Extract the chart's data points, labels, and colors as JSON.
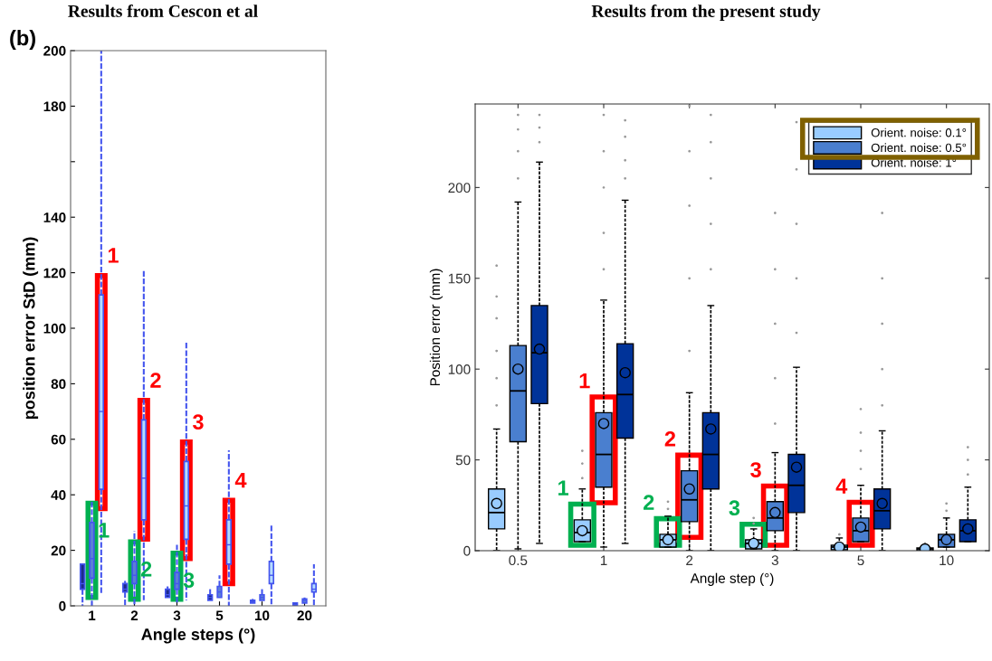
{
  "chart_data": [
    {
      "type": "box",
      "title": "Results from Cescon et al",
      "xlabel": "Angle steps (°)",
      "ylabel": "position error StD (mm)",
      "categories": [
        "1",
        "2",
        "3",
        "5",
        "10",
        "20"
      ],
      "ylim": [
        0,
        200
      ],
      "yticks": [
        0,
        20,
        40,
        60,
        80,
        100,
        120,
        140,
        {
          "value": 160,
          "label": null
        },
        180,
        200
      ],
      "grid": false,
      "legend": false,
      "series": [
        {
          "color": "#1c2a8c",
          "boxes": [
            {
              "low": 0,
              "q1": 6,
              "median": 8,
              "q3": 15,
              "high": 15
            },
            {
              "low": 0,
              "q1": 5,
              "median": 6,
              "q3": 8,
              "high": 9
            },
            {
              "low": 3,
              "q1": 3,
              "median": 4,
              "q3": 6,
              "high": 7
            },
            {
              "low": 2,
              "q1": 2,
              "median": 3,
              "q3": 4,
              "high": 6
            },
            {
              "low": 1,
              "q1": 1,
              "median": 1.5,
              "q3": 2,
              "high": 2.5
            },
            {
              "low": 0,
              "q1": 0,
              "median": 0.5,
              "q3": 1,
              "high": 1
            }
          ]
        },
        {
          "color": "#5b7fd6",
          "boxes": [
            {
              "low": 0,
              "q1": 10,
              "median": 17,
              "q3": 30,
              "high": 38
            },
            {
              "low": 0,
              "q1": 8,
              "median": 11,
              "q3": 16,
              "high": 27
            },
            {
              "low": 1,
              "q1": 6,
              "median": 8,
              "q3": 12,
              "high": 22
            },
            {
              "low": 3,
              "q1": 3,
              "median": 5,
              "q3": 7,
              "high": 11
            },
            {
              "low": 2,
              "q1": 2,
              "median": 3,
              "q3": 4,
              "high": 6
            },
            {
              "low": 1,
              "q1": 1,
              "median": 2,
              "q3": 2.5,
              "high": 3
            }
          ]
        },
        {
          "color": "#b5dcff",
          "boxes": [
            {
              "low": 4,
              "q1": 42,
              "median": 70,
              "q3": 112,
              "high": 200
            },
            {
              "low": 2,
              "q1": 31,
              "median": 46,
              "q3": 67,
              "high": 121
            },
            {
              "low": 2,
              "q1": 24,
              "median": 36,
              "q3": 52,
              "high": 95
            },
            {
              "low": 0,
              "q1": 15,
              "median": 22,
              "q3": 31,
              "high": 56
            },
            {
              "low": 0,
              "q1": 8,
              "median": 11,
              "q3": 16,
              "high": 29
            },
            {
              "low": 0,
              "q1": 5,
              "median": 6,
              "q3": 8,
              "high": 15
            }
          ]
        }
      ],
      "annotations": [
        "(b)",
        "1",
        "2",
        "3",
        "4",
        "1",
        "2",
        "3"
      ]
    },
    {
      "type": "box",
      "title": "Results from the present study",
      "xlabel": "Angle step (°)",
      "ylabel": "Position error (mm)",
      "categories": [
        "0.5",
        "1",
        "2",
        "3",
        "5",
        "10"
      ],
      "ylim": [
        0,
        246
      ],
      "yticks": [
        0,
        50,
        100,
        150,
        200
      ],
      "grid": false,
      "legend": "top right",
      "series": [
        {
          "name": "Orient. noise: 0.1°",
          "color": "#99ccff",
          "boxes": [
            {
              "low": 0,
              "q1": 12,
              "median": 21,
              "q3": 34,
              "high": 67,
              "mean": 26,
              "outliers": [
                80,
                95,
                110,
                128,
                140,
                157
              ]
            },
            {
              "low": 5,
              "q1": 5,
              "median": 10,
              "q3": 17,
              "high": 34,
              "mean": 11,
              "outliers": [
                40,
                48,
                55
              ]
            },
            {
              "low": 2,
              "q1": 2,
              "median": 6,
              "q3": 9,
              "high": 19,
              "mean": 6,
              "outliers": [
                23,
                27
              ]
            },
            {
              "low": 1,
              "q1": 1,
              "median": 4,
              "q3": 6,
              "high": 12,
              "mean": 4,
              "outliers": [
                15,
                18
              ]
            },
            {
              "low": 0,
              "q1": 0.5,
              "median": 2,
              "q3": 3,
              "high": 7,
              "mean": 2,
              "outliers": [
                9
              ]
            },
            {
              "low": 0,
              "q1": 0,
              "median": 1,
              "q3": 1.5,
              "high": 3,
              "mean": 1,
              "outliers": [
                4
              ]
            }
          ]
        },
        {
          "name": "Orient. noise: 0.5°",
          "color": "#4a7fcf",
          "boxes": [
            {
              "low": 1,
              "q1": 60,
              "median": 88,
              "q3": 113,
              "high": 192,
              "mean": 100,
              "outliers": [
                205,
                220,
                232,
                240
              ]
            },
            {
              "low": 2,
              "q1": 35,
              "median": 53,
              "q3": 76,
              "high": 138,
              "mean": 70,
              "outliers": [
                155,
                175,
                200,
                220,
                240
              ]
            },
            {
              "low": 0,
              "q1": 16,
              "median": 28,
              "q3": 44,
              "high": 87,
              "mean": 34,
              "outliers": [
                110,
                150,
                190,
                220,
                245
              ]
            },
            {
              "low": 0,
              "q1": 11,
              "median": 18,
              "q3": 27,
              "high": 54,
              "mean": 21,
              "outliers": [
                70,
                95,
                125,
                155,
                186
              ]
            },
            {
              "low": 5,
              "q1": 5,
              "median": 11,
              "q3": 18,
              "high": 36,
              "mean": 13,
              "outliers": [
                45,
                55,
                65,
                78
              ]
            },
            {
              "low": 2,
              "q1": 2,
              "median": 6,
              "q3": 9,
              "high": 18,
              "mean": 6,
              "outliers": [
                22,
                26
              ]
            }
          ]
        },
        {
          "name": "Orient. noise: 1°",
          "color": "#003399",
          "boxes": [
            {
              "low": 4,
              "q1": 81,
              "median": 109,
              "q3": 135,
              "high": 214,
              "mean": 111,
              "outliers": [
                225,
                233,
                240
              ]
            },
            {
              "low": 4,
              "q1": 62,
              "median": 86,
              "q3": 114,
              "high": 193,
              "mean": 98,
              "outliers": [
                205,
                215,
                228,
                237
              ]
            },
            {
              "low": 0,
              "q1": 34,
              "median": 53,
              "q3": 76,
              "high": 135,
              "mean": 67,
              "outliers": [
                155,
                180,
                205,
                225,
                240
              ]
            },
            {
              "low": 0,
              "q1": 21,
              "median": 36,
              "q3": 53,
              "high": 101,
              "mean": 46,
              "outliers": [
                120,
                150,
                180,
                210,
                236
              ]
            },
            {
              "low": 0,
              "q1": 12,
              "median": 22,
              "q3": 34,
              "high": 66,
              "mean": 26,
              "outliers": [
                80,
                100,
                125,
                150,
                186
              ]
            },
            {
              "low": 5,
              "q1": 5,
              "median": 11,
              "q3": 17,
              "high": 35,
              "mean": 12,
              "outliers": [
                42,
                50,
                57
              ]
            }
          ]
        }
      ],
      "annotations": [
        "1",
        "2",
        "3",
        "4",
        "1",
        "2",
        "3"
      ]
    }
  ]
}
